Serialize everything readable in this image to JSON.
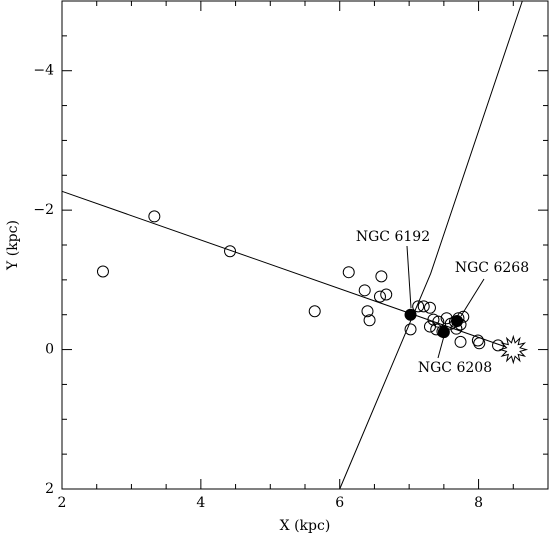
{
  "chart_data": {
    "type": "scatter",
    "x_label": "X (kpc)",
    "y_label": "Y (kpc)",
    "xlim": [
      2,
      9
    ],
    "ylim": [
      -5,
      2
    ],
    "y_inverted": true,
    "xticks": [
      2,
      4,
      6,
      8
    ],
    "yticks": [
      {
        "value": -4,
        "label": "−4"
      },
      {
        "value": -2,
        "label": "−2"
      },
      0,
      2
    ],
    "xminor_ticks": [
      2.5,
      3,
      3.5,
      4.5,
      5,
      5.5,
      6.5,
      7,
      7.5,
      8.5
    ],
    "yminor_ticks": [
      -4.5,
      -3.5,
      -3,
      -2.5,
      -1.5,
      -1,
      -0.5,
      0.5,
      1,
      1.5
    ],
    "series": [
      {
        "marker": "open",
        "color": "#000",
        "x": [
          2.59,
          3.33,
          4.42,
          5.64,
          6.13,
          6.6,
          6.36,
          6.58,
          6.67,
          6.4,
          6.43,
          7.02,
          7.13,
          7.21,
          7.3,
          7.35,
          7.42,
          7.54,
          7.6,
          7.66,
          7.71,
          7.78,
          7.3,
          7.39,
          7.48,
          7.68,
          7.74,
          7.74,
          7.99,
          8.01,
          8.28
        ],
        "y": [
          -1.12,
          -1.91,
          -1.41,
          -0.55,
          -1.11,
          -1.05,
          -0.85,
          -0.76,
          -0.79,
          -0.55,
          -0.42,
          -0.29,
          -0.62,
          -0.62,
          -0.6,
          -0.43,
          -0.4,
          -0.45,
          -0.37,
          -0.4,
          -0.45,
          -0.47,
          -0.33,
          -0.29,
          -0.26,
          -0.3,
          -0.36,
          -0.11,
          -0.13,
          -0.09,
          -0.06
        ]
      },
      {
        "marker": "filled",
        "color": "#000",
        "x": [
          7.02,
          7.5,
          7.69
        ],
        "y": [
          -0.5,
          -0.25,
          -0.41
        ]
      }
    ],
    "lines": [
      {
        "x": [
          2,
          8.5
        ],
        "y": [
          -2.27,
          0
        ]
      },
      {
        "x": [
          8.63,
          7.31,
          6.0
        ],
        "y": [
          -5,
          -1.09,
          2
        ]
      }
    ],
    "sun": {
      "x": 8.5,
      "y": 0
    },
    "annotations": [
      "NGC 6192",
      "NGC 6268",
      "NGC 6208"
    ]
  }
}
